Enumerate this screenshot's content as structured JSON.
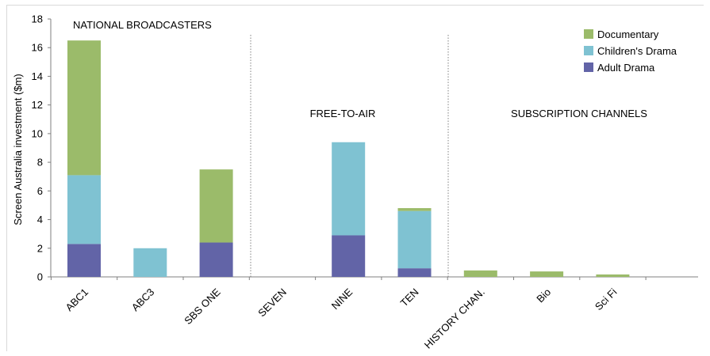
{
  "chart_data": {
    "type": "bar",
    "stacked": true,
    "ylabel": "Screen Australia investment ($m)",
    "ylim": [
      0,
      18
    ],
    "yticks": [
      0,
      2,
      4,
      6,
      8,
      10,
      12,
      14,
      16,
      18
    ],
    "categories": [
      "ABC1",
      "ABC3",
      "SBS ONE",
      "SEVEN",
      "NINE",
      "TEN",
      "HISTORY CHAN.",
      "Bio",
      "Sci Fi"
    ],
    "series": [
      {
        "name": "Adult Drama",
        "color": "#6264a7",
        "values": [
          2.3,
          0,
          2.4,
          0,
          2.9,
          0.6,
          0,
          0,
          0
        ]
      },
      {
        "name": "Children's Drama",
        "color": "#7fc2d2",
        "values": [
          4.8,
          2.0,
          0,
          0,
          6.5,
          4.0,
          0,
          0,
          0
        ]
      },
      {
        "name": "Documentary",
        "color": "#9bbb6a",
        "values": [
          9.4,
          0,
          5.1,
          0,
          0,
          0.2,
          0.45,
          0.38,
          0.17
        ]
      }
    ],
    "groups": [
      {
        "label": "NATIONAL BROADCASTERS"
      },
      {
        "label": "FREE-TO-AIR"
      },
      {
        "label": "SUBSCRIPTION CHANNELS"
      }
    ],
    "legend_position": "top-right",
    "grid": false
  }
}
